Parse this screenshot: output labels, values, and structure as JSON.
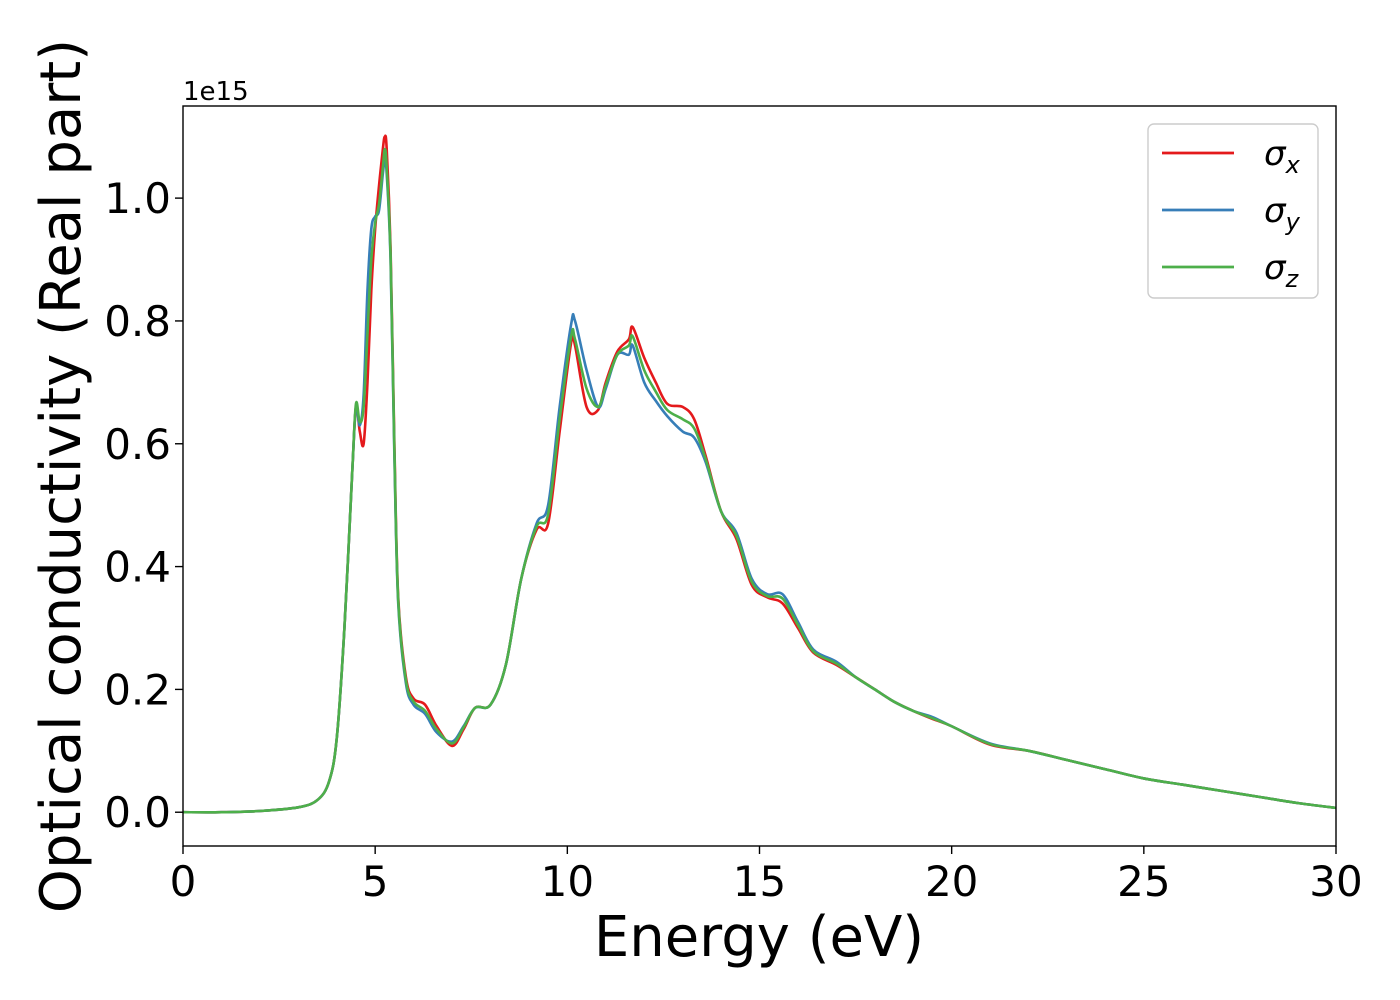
{
  "chart_data": {
    "type": "line",
    "title": "",
    "xlabel": "Energy (eV)",
    "ylabel": "Optical conductivity (Real part)",
    "y_offset_label": "1e15",
    "xlim": [
      0,
      30
    ],
    "ylim": [
      -0.055,
      1.15
    ],
    "x_ticks": [
      0,
      5,
      10,
      15,
      20,
      25,
      30
    ],
    "x_tick_labels": [
      "0",
      "5",
      "10",
      "15",
      "20",
      "25",
      "30"
    ],
    "y_ticks": [
      0.0,
      0.2,
      0.4,
      0.6,
      0.8,
      1.0
    ],
    "y_tick_labels": [
      "0.0",
      "0.2",
      "0.4",
      "0.6",
      "0.8",
      "1.0"
    ],
    "grid": false,
    "legend_position": "top-right",
    "x": [
      0,
      1,
      2,
      3,
      3.5,
      3.8,
      4.0,
      4.2,
      4.4,
      4.5,
      4.6,
      4.7,
      4.8,
      4.9,
      5.0,
      5.1,
      5.2,
      5.25,
      5.3,
      5.4,
      5.5,
      5.6,
      5.8,
      6.0,
      6.3,
      6.6,
      7.0,
      7.3,
      7.6,
      8.0,
      8.4,
      8.8,
      9.2,
      9.5,
      9.8,
      10.1,
      10.2,
      10.5,
      10.8,
      11.0,
      11.3,
      11.6,
      11.7,
      12.0,
      12.3,
      12.6,
      13.0,
      13.3,
      13.6,
      14.0,
      14.4,
      14.8,
      15.2,
      15.6,
      16.0,
      16.4,
      17.0,
      17.5,
      18.0,
      18.5,
      19.0,
      19.5,
      20.0,
      21.0,
      22.0,
      23.0,
      24.0,
      25.0,
      26.0,
      27.0,
      28.0,
      29.0,
      30.0
    ],
    "series": [
      {
        "name": "σx",
        "label_base": "σ",
        "label_sub": "x",
        "color": "#e41a1c",
        "values": [
          0.0,
          0.0,
          0.002,
          0.008,
          0.02,
          0.05,
          0.12,
          0.3,
          0.55,
          0.66,
          0.62,
          0.6,
          0.7,
          0.85,
          0.95,
          1.02,
          1.08,
          1.1,
          1.08,
          0.92,
          0.6,
          0.35,
          0.22,
          0.185,
          0.175,
          0.14,
          0.108,
          0.135,
          0.17,
          0.175,
          0.24,
          0.38,
          0.46,
          0.47,
          0.62,
          0.765,
          0.76,
          0.66,
          0.655,
          0.7,
          0.75,
          0.77,
          0.79,
          0.74,
          0.7,
          0.665,
          0.66,
          0.64,
          0.58,
          0.49,
          0.445,
          0.37,
          0.35,
          0.34,
          0.3,
          0.26,
          0.24,
          0.22,
          0.2,
          0.18,
          0.165,
          0.152,
          0.14,
          0.11,
          0.1,
          0.085,
          0.07,
          0.055,
          0.045,
          0.035,
          0.025,
          0.015,
          0.007
        ]
      },
      {
        "name": "σy",
        "label_base": "σ",
        "label_sub": "y",
        "color": "#377eb8",
        "values": [
          0.0,
          0.0,
          0.002,
          0.008,
          0.02,
          0.05,
          0.12,
          0.3,
          0.55,
          0.66,
          0.63,
          0.68,
          0.85,
          0.95,
          0.97,
          0.98,
          1.04,
          1.06,
          1.04,
          0.9,
          0.58,
          0.34,
          0.21,
          0.175,
          0.16,
          0.13,
          0.115,
          0.14,
          0.17,
          0.175,
          0.24,
          0.38,
          0.47,
          0.5,
          0.66,
          0.795,
          0.8,
          0.72,
          0.66,
          0.69,
          0.745,
          0.745,
          0.76,
          0.7,
          0.67,
          0.645,
          0.62,
          0.61,
          0.57,
          0.49,
          0.455,
          0.38,
          0.355,
          0.355,
          0.31,
          0.265,
          0.245,
          0.22,
          0.2,
          0.18,
          0.165,
          0.155,
          0.14,
          0.112,
          0.1,
          0.085,
          0.07,
          0.055,
          0.045,
          0.035,
          0.025,
          0.015,
          0.007
        ]
      },
      {
        "name": "σz",
        "label_base": "σ",
        "label_sub": "z",
        "color": "#4daf4a",
        "values": [
          0.0,
          0.0,
          0.002,
          0.008,
          0.02,
          0.05,
          0.12,
          0.3,
          0.55,
          0.665,
          0.635,
          0.66,
          0.78,
          0.9,
          0.96,
          0.99,
          1.05,
          1.08,
          1.05,
          0.91,
          0.59,
          0.345,
          0.215,
          0.18,
          0.165,
          0.135,
          0.112,
          0.138,
          0.17,
          0.175,
          0.24,
          0.38,
          0.465,
          0.485,
          0.64,
          0.775,
          0.77,
          0.69,
          0.66,
          0.695,
          0.745,
          0.76,
          0.775,
          0.72,
          0.685,
          0.655,
          0.64,
          0.625,
          0.575,
          0.49,
          0.45,
          0.375,
          0.352,
          0.348,
          0.305,
          0.262,
          0.242,
          0.22,
          0.2,
          0.18,
          0.165,
          0.153,
          0.14,
          0.111,
          0.1,
          0.085,
          0.07,
          0.055,
          0.045,
          0.035,
          0.025,
          0.015,
          0.007
        ]
      }
    ]
  }
}
